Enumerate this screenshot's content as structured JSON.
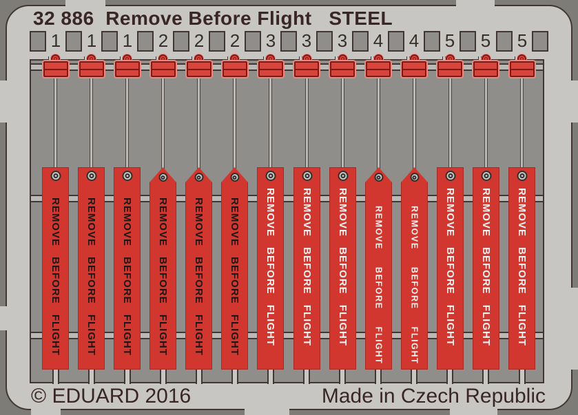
{
  "header": {
    "title": "32 886  Remove Before Flight   STEEL"
  },
  "footer": {
    "copyright": "© EDUARD 2016",
    "made_in": "Made in Czech Republic"
  },
  "streamer_text": "REMOVE BEFORE FLIGHT",
  "tags": [
    {
      "number": "1",
      "top": "flat",
      "text_color": "black",
      "text_size": "large"
    },
    {
      "number": "1",
      "top": "flat",
      "text_color": "black",
      "text_size": "large"
    },
    {
      "number": "1",
      "top": "flat",
      "text_color": "black",
      "text_size": "large"
    },
    {
      "number": "2",
      "top": "pennant",
      "text_color": "black",
      "text_size": "large"
    },
    {
      "number": "2",
      "top": "pennant",
      "text_color": "black",
      "text_size": "large"
    },
    {
      "number": "2",
      "top": "pennant",
      "text_color": "black",
      "text_size": "large"
    },
    {
      "number": "3",
      "top": "flat",
      "text_color": "white",
      "text_size": "large"
    },
    {
      "number": "3",
      "top": "flat",
      "text_color": "white",
      "text_size": "large"
    },
    {
      "number": "3",
      "top": "flat",
      "text_color": "white",
      "text_size": "large"
    },
    {
      "number": "4",
      "top": "pennant",
      "text_color": "white",
      "text_size": "small"
    },
    {
      "number": "4",
      "top": "pennant",
      "text_color": "white",
      "text_size": "small"
    },
    {
      "number": "5",
      "top": "flat",
      "text_color": "white",
      "text_size": "large"
    },
    {
      "number": "5",
      "top": "flat",
      "text_color": "white",
      "text_size": "large"
    },
    {
      "number": "5",
      "top": "flat",
      "text_color": "white",
      "text_size": "large"
    }
  ],
  "colors": {
    "background": "#7d7c76",
    "sheet": "#c7c6c2",
    "window": "#8f8e8a",
    "rail": "#bab9b5",
    "outline": "#403734",
    "red": "#d1372f",
    "clip_red": "#d8453c",
    "clip_border": "#801913",
    "clip_glow": "#e98980",
    "frame_text": "#3a2624",
    "streamer_text_black": "#1d1816",
    "streamer_text_white": "#f5f3f1"
  }
}
